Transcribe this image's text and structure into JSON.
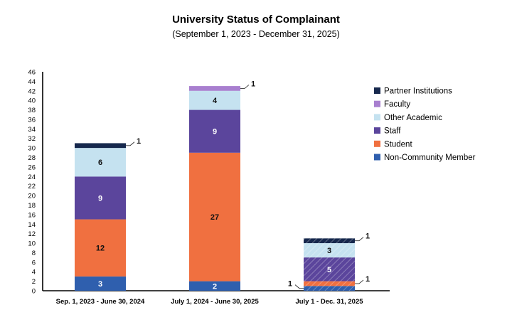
{
  "chart_data": {
    "type": "bar",
    "stacked": true,
    "title": "University Status of Complainant",
    "subtitle": "(September 1, 2023 - December 31, 2025)",
    "xlabel": "",
    "ylabel": "",
    "ylim": [
      0,
      46
    ],
    "y_ticks": [
      0,
      2,
      4,
      6,
      8,
      10,
      12,
      14,
      16,
      18,
      20,
      22,
      24,
      26,
      28,
      30,
      32,
      34,
      36,
      38,
      40,
      42,
      44,
      46
    ],
    "grid": false,
    "legend_position": "right",
    "categories": [
      "Sep. 1, 2023 - June 30, 2024",
      "July 1, 2024 - June 30, 2025",
      "July 1 - Dec. 31, 2025"
    ],
    "hatched_categories": [
      2
    ],
    "series": [
      {
        "name": "Non-Community Member",
        "color": "#2f5fae",
        "values": [
          3,
          2,
          1
        ]
      },
      {
        "name": "Student",
        "color": "#f07040",
        "values": [
          12,
          27,
          1
        ]
      },
      {
        "name": "Staff",
        "color": "#5b459c",
        "values": [
          9,
          9,
          5
        ]
      },
      {
        "name": "Other Academic",
        "color": "#c5e2f0",
        "values": [
          6,
          4,
          3
        ]
      },
      {
        "name": "Faculty",
        "color": "#a87fcf",
        "values": [
          0,
          1,
          0
        ]
      },
      {
        "name": "Partner Institutions",
        "color": "#16284d",
        "values": [
          1,
          0,
          1
        ]
      }
    ],
    "legend_order": [
      5,
      4,
      3,
      2,
      1,
      0
    ]
  }
}
